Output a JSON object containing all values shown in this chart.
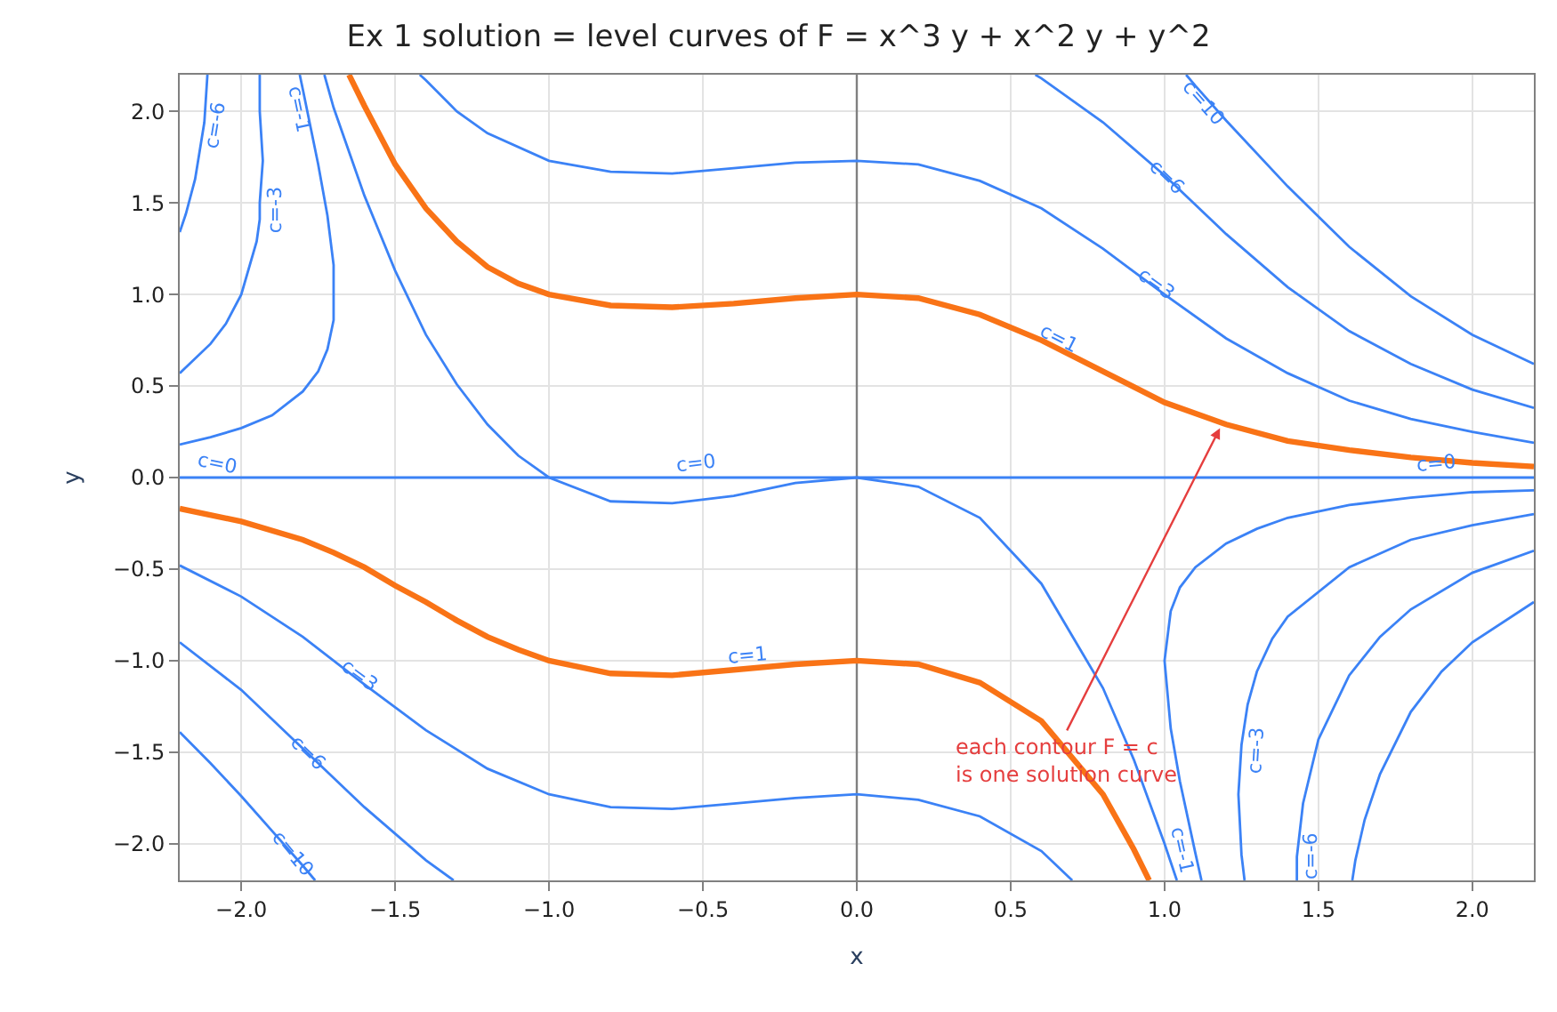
{
  "chart_data": {
    "type": "line",
    "title": "Ex 1 solution = level curves of F = x^3 y + x^2 y + y^2",
    "xlabel": "x",
    "ylabel": "y",
    "xlim": [
      -2.2,
      2.2
    ],
    "ylim": [
      -2.2,
      2.2
    ],
    "xticks": [
      {
        "value": -2,
        "label": "−2.0"
      },
      {
        "value": -1.5,
        "label": "−1.5"
      },
      {
        "value": -1,
        "label": "−1.0"
      },
      {
        "value": -0.5,
        "label": "−0.5"
      },
      {
        "value": 0,
        "label": "0.0"
      },
      {
        "value": 0.5,
        "label": "0.5"
      },
      {
        "value": 1,
        "label": "1.0"
      },
      {
        "value": 1.5,
        "label": "1.5"
      },
      {
        "value": 2,
        "label": "2.0"
      }
    ],
    "yticks": [
      {
        "value": -2,
        "label": "−2.0"
      },
      {
        "value": -1.5,
        "label": "−1.5"
      },
      {
        "value": -1,
        "label": "−1.0"
      },
      {
        "value": -0.5,
        "label": "−0.5"
      },
      {
        "value": 0,
        "label": "0.0"
      },
      {
        "value": 0.5,
        "label": "0.5"
      },
      {
        "value": 1,
        "label": "1.0"
      },
      {
        "value": 1.5,
        "label": "1.5"
      },
      {
        "value": 2,
        "label": "2.0"
      }
    ],
    "grid": true,
    "marker": "none",
    "line_style": "solid",
    "ref_lines": [
      {
        "axis": "x",
        "value": 0,
        "color": "#808080"
      }
    ],
    "series": [
      {
        "color": "#3b82f6",
        "x": [
          1.61,
          1.62,
          1.65,
          1.7,
          1.8,
          1.9,
          2.0,
          2.2
        ],
        "values": [
          -2.2,
          -2.09,
          -1.87,
          -1.62,
          -1.28,
          -1.06,
          -0.9,
          -0.68
        ]
      },
      {
        "color": "#3b82f6",
        "x": [
          -2.2,
          -2.1,
          -2.0,
          -1.9,
          -1.8,
          -1.76
        ],
        "values": [
          -1.39,
          -1.56,
          -1.74,
          -1.93,
          -2.12,
          -2.2
        ]
      },
      {
        "color": "#3b82f6",
        "x": [
          1.07,
          1.1,
          1.2,
          1.4,
          1.6,
          1.8,
          2.0,
          2.2
        ],
        "values": [
          2.2,
          2.14,
          1.95,
          1.59,
          1.26,
          0.99,
          0.78,
          0.62
        ]
      },
      {
        "color": "#3b82f6",
        "x": [
          -2.2,
          -2.18,
          -2.15,
          -2.12,
          -2.11
        ],
        "values": [
          1.34,
          1.44,
          1.63,
          1.94,
          2.2
        ]
      },
      {
        "color": "#3b82f6",
        "x": [
          1.43,
          1.43,
          1.45,
          1.5,
          1.6,
          1.7,
          1.8,
          2.0,
          2.2
        ],
        "values": [
          -2.2,
          -2.07,
          -1.78,
          -1.43,
          -1.08,
          -0.87,
          -0.72,
          -0.52,
          -0.4
        ]
      },
      {
        "color": "#3b82f6",
        "x": [
          -2.2,
          -2.0,
          -1.8,
          -1.6,
          -1.4,
          -1.31
        ],
        "values": [
          -0.9,
          -1.16,
          -1.48,
          -1.8,
          -2.09,
          -2.2
        ]
      },
      {
        "color": "#3b82f6",
        "x": [
          0.58,
          0.6,
          0.8,
          1.0,
          1.2,
          1.4,
          1.6,
          1.8,
          2.0,
          2.2
        ],
        "values": [
          2.2,
          2.18,
          1.94,
          1.65,
          1.33,
          1.04,
          0.8,
          0.62,
          0.48,
          0.38
        ]
      },
      {
        "color": "#3b82f6",
        "x": [
          -2.2,
          -2.1,
          -2.05,
          -2.0,
          -1.95,
          -1.94,
          -1.94,
          -1.93,
          -1.94,
          -1.94,
          -1.94
        ],
        "values": [
          0.57,
          0.73,
          0.84,
          1.0,
          1.29,
          1.41,
          1.5,
          1.73,
          2.0,
          2.13,
          2.2
        ]
      },
      {
        "color": "#3b82f6",
        "x": [
          2.2,
          2.0,
          1.8,
          1.6,
          1.4,
          1.35,
          1.3,
          1.27,
          1.25,
          1.24,
          1.25,
          1.26
        ],
        "values": [
          -0.2,
          -0.26,
          -0.34,
          -0.49,
          -0.76,
          -0.88,
          -1.06,
          -1.24,
          -1.46,
          -1.73,
          -2.06,
          -2.2
        ]
      },
      {
        "color": "#3b82f6",
        "x": [
          -1.42,
          -1.4,
          -1.3,
          -1.2,
          -1.0,
          -0.8,
          -0.6,
          -0.4,
          -0.2,
          0.0,
          0.2,
          0.4,
          0.6,
          0.8,
          1.0,
          1.2,
          1.4,
          1.6,
          1.8,
          2.0,
          2.2
        ],
        "values": [
          2.2,
          2.17,
          2.0,
          1.88,
          1.73,
          1.67,
          1.66,
          1.69,
          1.72,
          1.73,
          1.71,
          1.62,
          1.47,
          1.25,
          1.0,
          0.76,
          0.57,
          0.42,
          0.32,
          0.25,
          0.19
        ]
      },
      {
        "color": "#3b82f6",
        "x": [
          -2.2,
          -2.0,
          -1.8,
          -1.6,
          -1.4,
          -1.2,
          -1.0,
          -0.8,
          -0.6,
          -0.4,
          -0.2,
          0.0,
          0.2,
          0.4,
          0.6,
          0.7
        ],
        "values": [
          -0.48,
          -0.65,
          -0.87,
          -1.13,
          -1.38,
          -1.59,
          -1.73,
          -1.8,
          -1.81,
          -1.78,
          -1.75,
          -1.73,
          -1.76,
          -1.85,
          -2.04,
          -2.2
        ]
      },
      {
        "color": "#3b82f6",
        "x": [
          -2.2,
          -2.1,
          -2.0,
          -1.9,
          -1.8,
          -1.75,
          -1.72,
          -1.7,
          -1.7,
          -1.7,
          -1.72,
          -1.75,
          -1.8,
          -1.81
        ],
        "values": [
          0.18,
          0.22,
          0.27,
          0.34,
          0.47,
          0.58,
          0.7,
          0.86,
          1.0,
          1.16,
          1.43,
          1.71,
          2.12,
          2.2
        ]
      },
      {
        "color": "#3b82f6",
        "x": [
          2.2,
          2.0,
          1.8,
          1.6,
          1.4,
          1.3,
          1.2,
          1.1,
          1.05,
          1.02,
          1.0,
          1.02,
          1.05,
          1.1,
          1.12
        ],
        "values": [
          -0.07,
          -0.08,
          -0.11,
          -0.15,
          -0.22,
          -0.28,
          -0.36,
          -0.49,
          -0.6,
          -0.73,
          -1.0,
          -1.37,
          -1.66,
          -2.05,
          -2.2
        ]
      },
      {
        "color": "#3b82f6",
        "x": [
          -2.2,
          2.2
        ],
        "values": [
          0,
          0
        ]
      },
      {
        "color": "#3b82f6",
        "x": [
          -1.73,
          -1.7,
          -1.6,
          -1.5,
          -1.4,
          -1.3,
          -1.2,
          -1.1,
          -1.0,
          -0.8,
          -0.6,
          -0.4,
          -0.2,
          0.0,
          0.2,
          0.4,
          0.6,
          0.8,
          0.9,
          1.0,
          1.04
        ],
        "values": [
          2.2,
          2.02,
          1.54,
          1.13,
          0.78,
          0.51,
          0.29,
          0.12,
          0.0,
          -0.13,
          -0.14,
          -0.1,
          -0.03,
          0.0,
          -0.05,
          -0.22,
          -0.58,
          -1.15,
          -1.54,
          -2.0,
          -2.2
        ]
      },
      {
        "color": "#f97316",
        "x": [
          -1.65,
          -1.6,
          -1.5,
          -1.4,
          -1.3,
          -1.2,
          -1.1,
          -1.0,
          -0.8,
          -0.6,
          -0.4,
          -0.2,
          0.0,
          0.2,
          0.4,
          0.6,
          0.8,
          1.0,
          1.2,
          1.4,
          1.6,
          1.8,
          2.0,
          2.2
        ],
        "values": [
          2.2,
          2.03,
          1.71,
          1.47,
          1.29,
          1.15,
          1.06,
          1.0,
          0.94,
          0.93,
          0.95,
          0.98,
          1.0,
          0.98,
          0.89,
          0.75,
          0.58,
          0.41,
          0.29,
          0.2,
          0.15,
          0.11,
          0.08,
          0.06
        ]
      },
      {
        "color": "#f97316",
        "x": [
          -2.2,
          -2.0,
          -1.8,
          -1.7,
          -1.6,
          -1.5,
          -1.4,
          -1.3,
          -1.2,
          -1.1,
          -1.0,
          -0.8,
          -0.6,
          -0.4,
          -0.2,
          0.0,
          0.2,
          0.4,
          0.6,
          0.8,
          0.9,
          0.95
        ],
        "values": [
          -0.17,
          -0.24,
          -0.34,
          -0.41,
          -0.49,
          -0.59,
          -0.68,
          -0.78,
          -0.87,
          -0.94,
          -1.0,
          -1.07,
          -1.08,
          -1.05,
          -1.02,
          -1.0,
          -1.02,
          -1.12,
          -1.33,
          -1.73,
          -2.03,
          -2.2
        ]
      }
    ],
    "annotations": [
      {
        "text": "c=-6",
        "x": -2.13,
        "y": 1.91
      },
      {
        "text": "c=-3",
        "x": -1.94,
        "y": 1.46
      },
      {
        "text": "c=-1",
        "x": -1.77,
        "y": 2.0
      },
      {
        "text": "c=0",
        "x": -2.07,
        "y": 0
      },
      {
        "text": "c=0",
        "x": -0.53,
        "y": 0
      },
      {
        "text": "c=0",
        "x": 1.88,
        "y": 0
      },
      {
        "text": "c=10",
        "x": 1.16,
        "y": 2.0
      },
      {
        "text": "c=6",
        "x": 1.04,
        "y": 1.59
      },
      {
        "text": "c=3",
        "x": 1.0,
        "y": 1.0
      },
      {
        "text": "c=1",
        "x": 0.68,
        "y": 0.69
      },
      {
        "text": "c=1",
        "x": -0.36,
        "y": -1.05
      },
      {
        "text": "c=3",
        "x": -1.59,
        "y": -1.14
      },
      {
        "text": "c=6",
        "x": -1.75,
        "y": -1.56
      },
      {
        "text": "c=10",
        "x": -1.8,
        "y": -2.1
      },
      {
        "text": "c=-3",
        "x": 1.25,
        "y": -1.5
      },
      {
        "text": "c=-1",
        "x": 1.1,
        "y": -2.05
      },
      {
        "text": "c=-6",
        "x": 1.43,
        "y": -2.07
      },
      {
        "text": "each contour F = c\nis one solution curve",
        "x": 1.18,
        "y": 0.27
      }
    ]
  }
}
